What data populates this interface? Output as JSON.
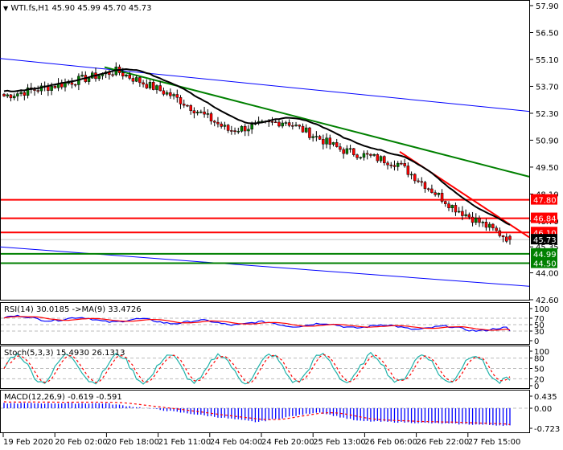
{
  "header": {
    "symbol_line": "WTI.fs,H1  45.90 45.99 45.70 45.73",
    "symbol": "WTI.fs",
    "timeframe": "H1",
    "open": 45.9,
    "high": 45.99,
    "low": 45.7,
    "close": 45.73
  },
  "indicators": {
    "rsi_label": "RSI(14) 30.0185  ->MA(9) 33.4726",
    "stoch_label": "Stoch(5,3,3) 15.4930 26.1313",
    "macd_label": "MACD(12,26,9) -0.619 -0.591"
  },
  "price_axis": {
    "ticks": [
      "57.90",
      "56.50",
      "55.10",
      "53.70",
      "52.30",
      "50.90",
      "49.50",
      "48.10",
      "46.70",
      "45.35",
      "44.00",
      "42.60"
    ],
    "current_price": "45.73",
    "level_tags": [
      {
        "value": "47.80",
        "color": "#ff0000"
      },
      {
        "value": "46.84",
        "color": "#ff0000"
      },
      {
        "value": "46.10",
        "color": "#ff0000"
      },
      {
        "value": "44.99",
        "color": "#008000"
      },
      {
        "value": "44.50",
        "color": "#008000"
      }
    ]
  },
  "rsi_axis": {
    "ticks": [
      "100",
      "70",
      "50",
      "30",
      "0"
    ]
  },
  "stoch_axis": {
    "ticks": [
      "100",
      "80",
      "50",
      "20",
      "0"
    ]
  },
  "macd_axis": {
    "ticks": [
      "0.435",
      "0.00",
      "-0.723"
    ]
  },
  "time_axis": {
    "labels": [
      "19 Feb 2020",
      "20 Feb 02:00",
      "20 Feb 18:00",
      "21 Feb 11:00",
      "24 Feb 04:00",
      "24 Feb 20:00",
      "25 Feb 13:00",
      "26 Feb 06:00",
      "26 Feb 22:00",
      "27 Feb 15:00"
    ]
  },
  "colors": {
    "bull": "#008000",
    "bear": "#ff0000",
    "ma": "#000000",
    "channel": "#0000ff",
    "green_trend": "#008000",
    "red_trend": "#ff0000",
    "rsi": "#0000ff",
    "rsi_ma": "#ff0000",
    "stoch_main": "#20b2aa",
    "stoch_signal": "#ff0000",
    "macd_hist": "#0000ff",
    "macd_signal": "#ff0000",
    "current_price_tag": "#000000"
  },
  "chart_data": [
    {
      "type": "candlestick",
      "title": "WTI.fs,H1",
      "xlabel": "",
      "ylabel": "Price",
      "ylim": [
        42.6,
        57.9
      ],
      "grid": false,
      "x": [
        "19 Feb 2020",
        "20 Feb 02:00",
        "20 Feb 18:00",
        "21 Feb 11:00",
        "24 Feb 04:00",
        "24 Feb 20:00",
        "25 Feb 13:00",
        "26 Feb 06:00",
        "26 Feb 22:00",
        "27 Feb 15:00"
      ],
      "close_approx": [
        53.2,
        53.8,
        54.5,
        53.2,
        51.4,
        51.9,
        50.4,
        49.7,
        47.4,
        45.73
      ],
      "last_bar": {
        "open": 45.9,
        "high": 45.99,
        "low": 45.7,
        "close": 45.73
      },
      "horizontal_levels": [
        {
          "value": 47.8,
          "color": "red"
        },
        {
          "value": 46.84,
          "color": "red"
        },
        {
          "value": 46.1,
          "color": "red"
        },
        {
          "value": 44.99,
          "color": "green"
        },
        {
          "value": 44.5,
          "color": "green"
        }
      ],
      "trendlines": [
        {
          "name": "upper channel",
          "color": "blue",
          "from": [
            0,
            55.15
          ],
          "to": [
            658,
            52.4
          ]
        },
        {
          "name": "lower channel",
          "color": "blue",
          "from": [
            0,
            45.35
          ],
          "to": [
            658,
            43.3
          ]
        },
        {
          "name": "green downtrend",
          "color": "green",
          "from": [
            130,
            54.7
          ],
          "to": [
            658,
            49.0
          ]
        },
        {
          "name": "red downtrend",
          "color": "red",
          "from": [
            497,
            50.3
          ],
          "to": [
            658,
            45.85
          ]
        }
      ],
      "moving_average": {
        "color": "black",
        "period": "unknown"
      }
    },
    {
      "type": "line",
      "title": "RSI(14) 30.0185  ->MA(9) 33.4726",
      "ylim": [
        0,
        100
      ],
      "levels": [
        70,
        50,
        30
      ],
      "series": [
        {
          "name": "RSI(14)",
          "last": 30.0185,
          "color": "blue"
        },
        {
          "name": "MA(9)",
          "last": 33.4726,
          "color": "red"
        }
      ]
    },
    {
      "type": "line",
      "title": "Stoch(5,3,3) 15.4930 26.1313",
      "ylim": [
        0,
        100
      ],
      "levels": [
        80,
        50,
        20
      ],
      "series": [
        {
          "name": "%K",
          "last": 15.493,
          "color": "lightseagreen"
        },
        {
          "name": "%D",
          "last": 26.1313,
          "color": "red",
          "dashed": true
        }
      ]
    },
    {
      "type": "bar",
      "title": "MACD(12,26,9) -0.619 -0.591",
      "ylim": [
        -0.723,
        0.435
      ],
      "series": [
        {
          "name": "MACD",
          "last": -0.619,
          "color": "blue"
        },
        {
          "name": "Signal",
          "last": -0.591,
          "color": "red",
          "dashed": true
        }
      ]
    }
  ]
}
